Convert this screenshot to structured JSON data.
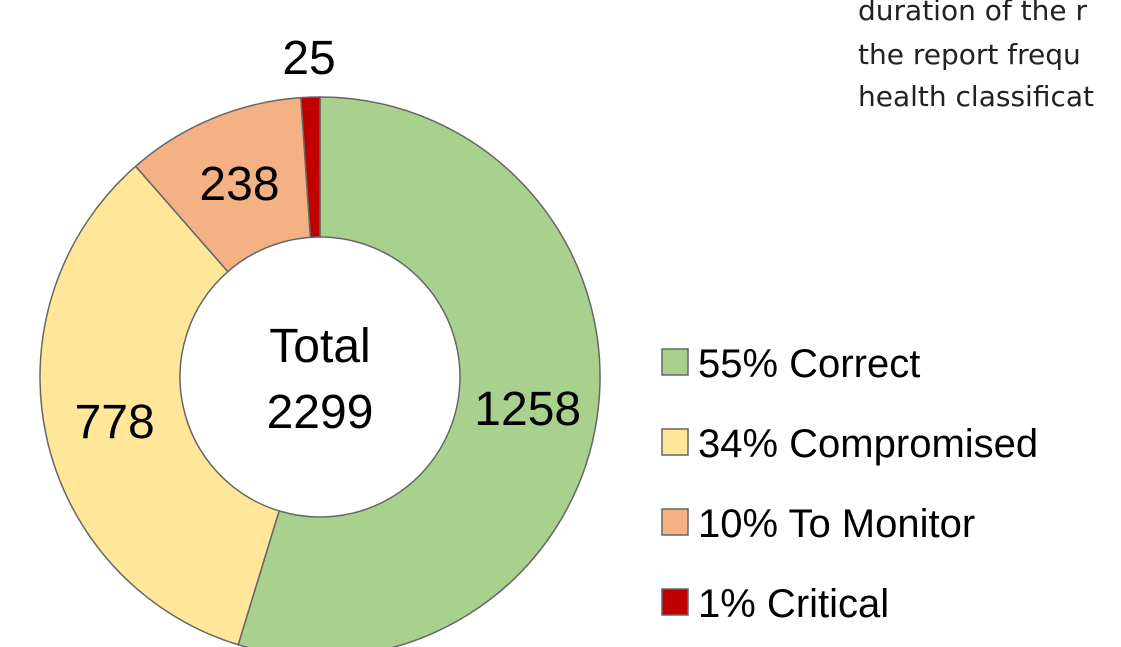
{
  "chart_data": {
    "type": "donut",
    "categories": [
      "55% Correct",
      "34% Compromised",
      "10% To Monitor",
      "1% Critical"
    ],
    "values": [
      1258,
      778,
      238,
      25
    ],
    "colors": [
      "#a9d18e",
      "#ffe699",
      "#f4b183",
      "#c00000"
    ],
    "center_label": "Total",
    "total": 2299,
    "annotation": [
      "duration of the r",
      "the report frequ",
      "health classificat"
    ]
  }
}
